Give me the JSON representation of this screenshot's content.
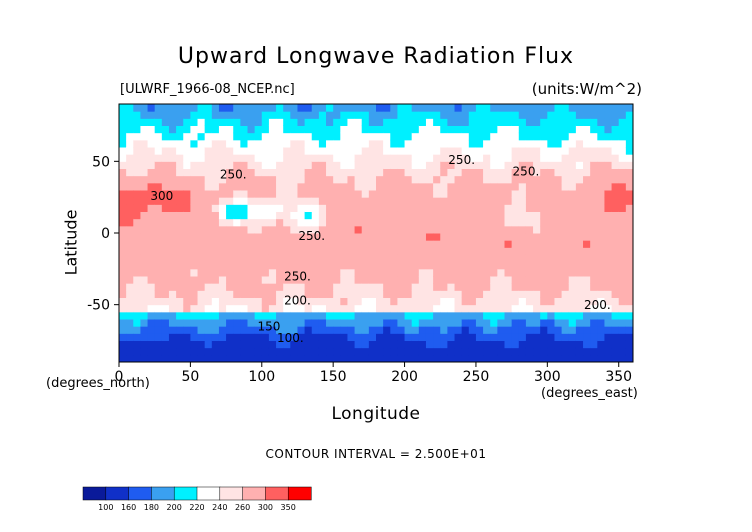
{
  "figure": {
    "title": "Upward Longwave Radiation Flux",
    "dataset_label": "[ULWRF_1966-08_NCEP.nc]",
    "units_label": "(units:W/m^2)",
    "contour_interval": "CONTOUR INTERVAL = 2.500E+01"
  },
  "chart_data": {
    "type": "heatmap",
    "title": "Upward Longwave Radiation Flux",
    "xlabel": "Longitude",
    "ylabel": "Latitude",
    "x_units_note": "(degrees_east)",
    "y_units_note": "(degrees_north)",
    "xlim": [
      0,
      360
    ],
    "ylim": [
      -90,
      90
    ],
    "x_ticks": [
      0,
      50,
      100,
      150,
      200,
      250,
      300,
      350
    ],
    "y_ticks": [
      -50,
      0,
      50
    ],
    "colorbar": {
      "levels": [
        100,
        160,
        180,
        200,
        220,
        240,
        260,
        300,
        350
      ],
      "colors": [
        "#0a1a9a",
        "#1030c8",
        "#1f5cf0",
        "#3aa0f0",
        "#00f0ff",
        "#ffffff",
        "#ffe4e4",
        "#ffb0b0",
        "#ff6060",
        "#ff0000"
      ]
    },
    "contour_labels": [
      {
        "text": "250.",
        "lon": 240,
        "lat": 48
      },
      {
        "text": "250.",
        "lon": 285,
        "lat": 40
      },
      {
        "text": "250.",
        "lon": 80,
        "lat": 38
      },
      {
        "text": "300",
        "lon": 30,
        "lat": 23
      },
      {
        "text": "250.",
        "lon": 135,
        "lat": -5
      },
      {
        "text": "250.",
        "lon": 125,
        "lat": -33
      },
      {
        "text": "200.",
        "lon": 125,
        "lat": -50
      },
      {
        "text": "200.",
        "lon": 335,
        "lat": -53
      },
      {
        "text": "150",
        "lon": 105,
        "lat": -68
      },
      {
        "text": "100.",
        "lon": 120,
        "lat": -76
      }
    ]
  }
}
